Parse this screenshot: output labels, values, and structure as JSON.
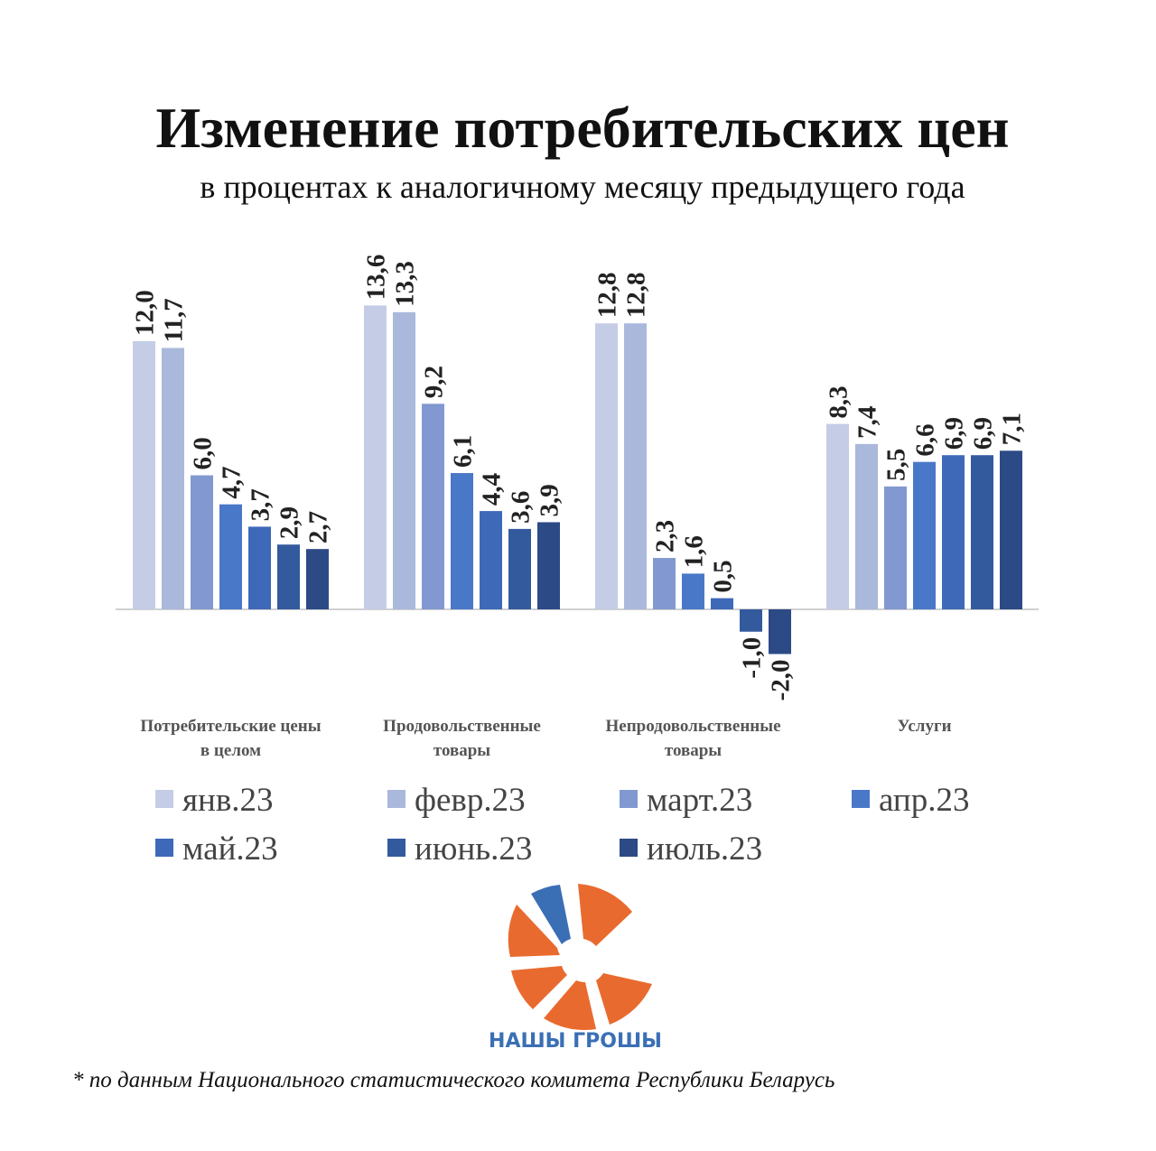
{
  "chart_data": {
    "type": "bar",
    "title": "Изменение потребительских цен",
    "subtitle": "в процентах к аналогичному месяцу предыдущего года",
    "categories": [
      "Потребительские цены\nв целом",
      "Продовольственные\nтовары",
      "Непродовольственные\nтовары",
      "Услуги"
    ],
    "series": [
      {
        "name": "янв.23",
        "color": "#c5cde6",
        "values": [
          12.0,
          13.6,
          12.8,
          8.3
        ],
        "value_labels": [
          "12,0",
          "13,6",
          "12,8",
          "8,3"
        ]
      },
      {
        "name": "февр.23",
        "color": "#aab8dc",
        "values": [
          11.7,
          13.3,
          12.8,
          7.4
        ],
        "value_labels": [
          "11,7",
          "13,3",
          "12,8",
          "7,4"
        ]
      },
      {
        "name": "март.23",
        "color": "#8199d0",
        "values": [
          6.0,
          9.2,
          2.3,
          5.5
        ],
        "value_labels": [
          "6,0",
          "9,2",
          "2,3",
          "5,5"
        ]
      },
      {
        "name": "апр.23",
        "color": "#4a78c8",
        "values": [
          4.7,
          6.1,
          1.6,
          6.6
        ],
        "value_labels": [
          "4,7",
          "6,1",
          "1,6",
          "6,6"
        ]
      },
      {
        "name": "май.23",
        "color": "#3d69b8",
        "values": [
          3.7,
          4.4,
          0.5,
          6.9
        ],
        "value_labels": [
          "3,7",
          "4,4",
          "0,5",
          "6,9"
        ]
      },
      {
        "name": "июнь.23",
        "color": "#345a9e",
        "values": [
          2.9,
          3.6,
          -1.0,
          6.9
        ],
        "value_labels": [
          "2,9",
          "3,6",
          "-1,0",
          "6,9"
        ]
      },
      {
        "name": "июль.23",
        "color": "#2c4a86",
        "values": [
          2.7,
          3.9,
          -2.0,
          7.1
        ],
        "value_labels": [
          "2,7",
          "3,9",
          "-2,0",
          "7,1"
        ]
      }
    ]
  },
  "logo": {
    "text": "НАШЫ ГРОШЫ"
  },
  "footnote": "* по данным Национального статистического комитета Республики Беларусь"
}
